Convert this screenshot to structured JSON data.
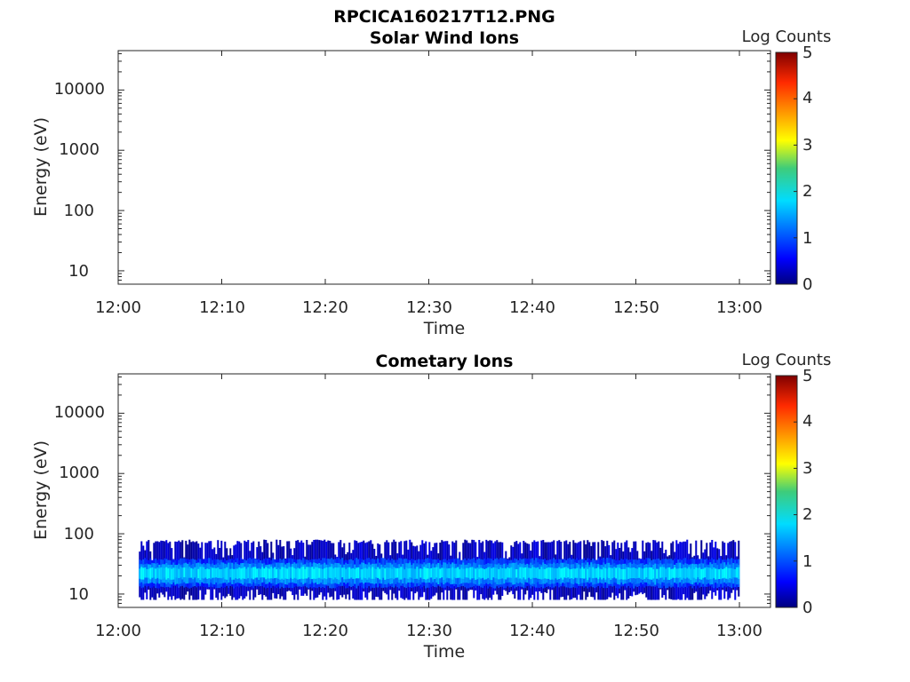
{
  "figure_title": "RPCICA160217T12.PNG",
  "chart_data": [
    {
      "type": "heatmap",
      "title": "Solar Wind Ions",
      "xlabel": "Time",
      "ylabel": "Energy (eV)",
      "y_scale": "log",
      "xlim": [
        "12:00",
        "13:03"
      ],
      "ylim": [
        6,
        45000
      ],
      "x_tick_labels": [
        "12:00",
        "12:10",
        "12:20",
        "12:30",
        "12:40",
        "12:50",
        "13:00"
      ],
      "y_tick_labels": [
        "10",
        "100",
        "1000",
        "10000"
      ],
      "colorbar": {
        "label": "Log Counts",
        "range": [
          0,
          5
        ],
        "tick_labels": [
          "0",
          "1",
          "2",
          "3",
          "4",
          "5"
        ],
        "colormap": "jet"
      },
      "grid": false,
      "data_present": false,
      "bands": []
    },
    {
      "type": "heatmap",
      "title": "Cometary Ions",
      "xlabel": "Time",
      "ylabel": "Energy (eV)",
      "y_scale": "log",
      "xlim": [
        "12:00",
        "13:03"
      ],
      "ylim": [
        6,
        45000
      ],
      "x_tick_labels": [
        "12:00",
        "12:10",
        "12:20",
        "12:30",
        "12:40",
        "12:50",
        "13:00"
      ],
      "y_tick_labels": [
        "10",
        "100",
        "1000",
        "10000"
      ],
      "colorbar": {
        "label": "Log Counts",
        "range": [
          0,
          5
        ],
        "tick_labels": [
          "0",
          "1",
          "2",
          "3",
          "4",
          "5"
        ],
        "colormap": "jet"
      },
      "grid": false,
      "data_present": true,
      "time_range": [
        "12:02",
        "13:00"
      ],
      "bands": [
        {
          "energy_range_eV": [
            8,
            80
          ],
          "log_counts": 0.3
        },
        {
          "energy_range_eV": [
            13,
            38
          ],
          "log_counts": 0.9
        },
        {
          "energy_range_eV": [
            15,
            32
          ],
          "log_counts": 1.3
        },
        {
          "energy_range_eV": [
            18,
            27
          ],
          "log_counts": 1.7
        }
      ]
    }
  ]
}
